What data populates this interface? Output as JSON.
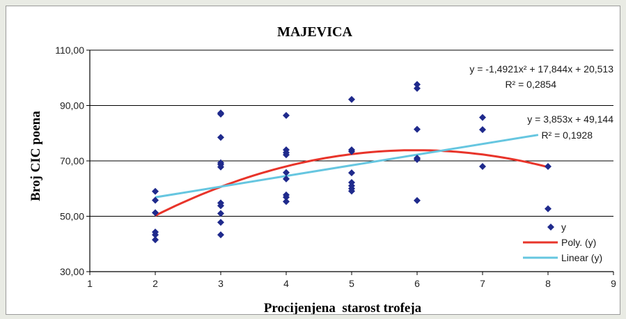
{
  "chart_data": {
    "type": "scatter",
    "title": "MAJEVICA",
    "xlabel": "Procijenjena  starost trofeja",
    "ylabel": "Broj CIC poena",
    "xlim": [
      1,
      9
    ],
    "ylim": [
      30,
      110
    ],
    "x_ticks": [
      "1",
      "2",
      "3",
      "4",
      "5",
      "6",
      "7",
      "8",
      "9"
    ],
    "y_ticks": [
      "30,00",
      "50,00",
      "70,00",
      "90,00",
      "110,00"
    ],
    "y_tick_values": [
      30,
      50,
      70,
      90,
      110
    ],
    "x_tick_values": [
      1,
      2,
      3,
      4,
      5,
      6,
      7,
      8,
      9
    ],
    "grid": "horizontal",
    "legend_position": "bottom-right",
    "series": [
      {
        "name": "y",
        "kind": "scatter",
        "color": "#1f2a8c",
        "points": [
          [
            2,
            59.0
          ],
          [
            2,
            55.8
          ],
          [
            2,
            51.3
          ],
          [
            2,
            44.3
          ],
          [
            2,
            43.3
          ],
          [
            2,
            41.5
          ],
          [
            3,
            87.3
          ],
          [
            3,
            86.9
          ],
          [
            3,
            78.5
          ],
          [
            3,
            69.3
          ],
          [
            3,
            68.7
          ],
          [
            3,
            67.8
          ],
          [
            3,
            54.8
          ],
          [
            3,
            53.8
          ],
          [
            3,
            51.0
          ],
          [
            3,
            47.8
          ],
          [
            3,
            43.3
          ],
          [
            4,
            86.4
          ],
          [
            4,
            74.0
          ],
          [
            4,
            73.0
          ],
          [
            4,
            72.2
          ],
          [
            4,
            65.8
          ],
          [
            4,
            63.5
          ],
          [
            4,
            57.7
          ],
          [
            4,
            56.9
          ],
          [
            4,
            55.3
          ],
          [
            5,
            92.2
          ],
          [
            5,
            74.0
          ],
          [
            5,
            73.4
          ],
          [
            5,
            65.7
          ],
          [
            5,
            62.2
          ],
          [
            5,
            61.0
          ],
          [
            5,
            60.0
          ],
          [
            5,
            59.1
          ],
          [
            6,
            97.6
          ],
          [
            6,
            96.2
          ],
          [
            6,
            81.4
          ],
          [
            6,
            71.0
          ],
          [
            6,
            70.5
          ],
          [
            6,
            55.7
          ],
          [
            7,
            85.7
          ],
          [
            7,
            81.3
          ],
          [
            7,
            68.0
          ],
          [
            8,
            68.0
          ],
          [
            8,
            52.7
          ]
        ]
      },
      {
        "name": "Poly. (y)",
        "kind": "trend-poly",
        "color": "#e8342a",
        "coefficients": [
          -1.4921,
          17.844,
          20.513
        ],
        "x_range": [
          2,
          8
        ]
      },
      {
        "name": "Linear (y)",
        "kind": "trend-linear",
        "color": "#66c6e0",
        "coefficients": [
          3.853,
          49.144
        ],
        "x_range": [
          2,
          7.85
        ]
      }
    ],
    "annotations": [
      {
        "text": "y = -1,4921x² + 17,844x + 20,513"
      },
      {
        "text": "R² = 0,2854"
      },
      {
        "text": "y = 3,853x + 49,144"
      },
      {
        "text": "R² = 0,1928"
      }
    ],
    "legend": [
      "y",
      "Poly. (y)",
      "Linear (y)"
    ]
  }
}
